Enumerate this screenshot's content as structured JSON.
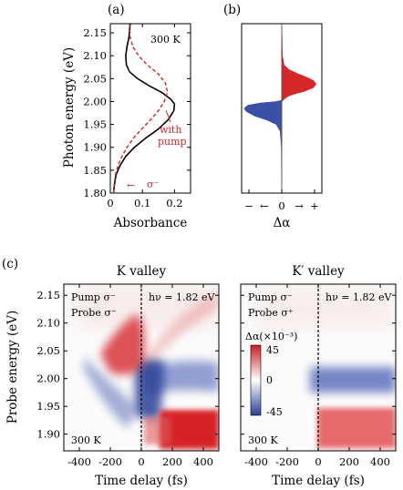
{
  "colors": {
    "red": "#d62728",
    "blue": "#3a4fa6",
    "black": "#000000",
    "cb_red": "#c81e24",
    "cb_blue": "#2b3f96"
  },
  "panels": {
    "a": {
      "label": "(a)",
      "temp": "300 K",
      "xlabel": "Absorbance",
      "ylabel": "Photon energy (eV)",
      "yticks": [
        "1.80",
        "1.85",
        "1.90",
        "1.95",
        "2.00",
        "2.05",
        "2.10",
        "2.15"
      ],
      "xticks": [
        "0",
        "0.1",
        "0.2"
      ],
      "annot_pump_1": "with",
      "annot_pump_2": "pump",
      "sigma_label": "σ⁻",
      "sigma_arrow": "←"
    },
    "b": {
      "label": "(b)",
      "xlabel": "Δα",
      "xticks": [
        "−",
        "←",
        "0",
        "→",
        "+"
      ]
    },
    "c": {
      "label": "(c)",
      "left_title": "K valley",
      "right_title": "K′ valley",
      "ylabel": "Probe energy (eV)",
      "xlabel": "Time delay (fs)",
      "yticks": [
        "1.90",
        "1.95",
        "2.00",
        "2.05",
        "2.10",
        "2.15"
      ],
      "xticks": [
        "-400",
        "-200",
        "0",
        "200",
        "400"
      ],
      "left_pump": "Pump σ⁻",
      "left_probe": "Probe σ⁻",
      "right_pump": "Pump σ⁻",
      "right_probe": "Probe σ⁺",
      "hv_left": "hν = 1.82 eV",
      "hv_right": "hν = 1.82 eV",
      "temp_left": "300 K",
      "temp_right": "300 K",
      "cbar_title": "Δα(×10⁻³)",
      "cbar_max": "45",
      "cbar_mid": "0",
      "cbar_min": "-45"
    }
  },
  "chart_data": [
    {
      "type": "line",
      "panel": "a",
      "xlabel": "Absorbance",
      "ylabel": "Photon energy (eV)",
      "xlim": [
        0,
        0.25
      ],
      "ylim": [
        1.8,
        2.17
      ],
      "series": [
        {
          "name": "",
          "style": "solid",
          "color": "#000000",
          "points": [
            [
              0.01,
              1.8
            ],
            [
              0.013,
              1.82
            ],
            [
              0.018,
              1.84
            ],
            [
              0.03,
              1.86
            ],
            [
              0.048,
              1.88
            ],
            [
              0.075,
              1.9
            ],
            [
              0.11,
              1.92
            ],
            [
              0.15,
              1.94
            ],
            [
              0.18,
              1.96
            ],
            [
              0.198,
              1.98
            ],
            [
              0.2,
              1.995
            ],
            [
              0.188,
              2.005
            ],
            [
              0.16,
              2.02
            ],
            [
              0.12,
              2.035
            ],
            [
              0.085,
              2.05
            ],
            [
              0.06,
              2.065
            ],
            [
              0.05,
              2.08
            ],
            [
              0.048,
              2.1
            ],
            [
              0.052,
              2.12
            ],
            [
              0.058,
              2.14
            ],
            [
              0.062,
              2.17
            ]
          ]
        },
        {
          "name": "with pump",
          "style": "dashed",
          "color": "#d62728",
          "points": [
            [
              0.01,
              1.8
            ],
            [
              0.012,
              1.82
            ],
            [
              0.016,
              1.84
            ],
            [
              0.024,
              1.86
            ],
            [
              0.036,
              1.88
            ],
            [
              0.052,
              1.9
            ],
            [
              0.072,
              1.92
            ],
            [
              0.098,
              1.94
            ],
            [
              0.125,
              1.96
            ],
            [
              0.15,
              1.98
            ],
            [
              0.168,
              2.0
            ],
            [
              0.178,
              2.02
            ],
            [
              0.172,
              2.04
            ],
            [
              0.15,
              2.06
            ],
            [
              0.115,
              2.08
            ],
            [
              0.088,
              2.1
            ],
            [
              0.07,
              2.12
            ],
            [
              0.062,
              2.14
            ],
            [
              0.06,
              2.17
            ]
          ]
        }
      ]
    },
    {
      "type": "area",
      "panel": "b",
      "xlabel": "Δα",
      "ylim": [
        1.8,
        2.17
      ],
      "series": [
        {
          "name": "",
          "color": "#d62728",
          "points": [
            [
              0,
              2.0
            ],
            [
              0.06,
              2.005
            ],
            [
              0.18,
              2.012
            ],
            [
              0.4,
              2.018
            ],
            [
              0.62,
              2.023
            ],
            [
              0.82,
              2.03
            ],
            [
              0.9,
              2.038
            ],
            [
              0.82,
              2.046
            ],
            [
              0.62,
              2.054
            ],
            [
              0.38,
              2.062
            ],
            [
              0.18,
              2.07
            ],
            [
              0.06,
              2.08
            ],
            [
              0.02,
              2.1
            ],
            [
              0,
              2.17
            ]
          ]
        },
        {
          "name": "",
          "color": "#3a4fa6",
          "points": [
            [
              0,
              1.8
            ],
            [
              -0.01,
              1.9
            ],
            [
              -0.04,
              1.935
            ],
            [
              -0.14,
              1.95
            ],
            [
              -0.4,
              1.96
            ],
            [
              -0.7,
              1.968
            ],
            [
              -0.92,
              1.978
            ],
            [
              -0.98,
              1.985
            ],
            [
              -0.88,
              1.992
            ],
            [
              -0.55,
              1.997
            ],
            [
              -0.15,
              2.0
            ],
            [
              0,
              2.003
            ]
          ]
        }
      ]
    },
    {
      "type": "heatmap",
      "panel": "c-left",
      "title": "K valley",
      "xlabel": "Time delay (fs)",
      "ylabel": "Probe energy (eV)",
      "xlim": [
        -500,
        500
      ],
      "ylim": [
        1.87,
        2.17
      ],
      "zlim": [
        -45,
        45
      ],
      "features": [
        {
          "sign": "+",
          "t_range": [
            -120,
            0
          ],
          "e_range": [
            1.98,
            2.05
          ],
          "peak": 25
        },
        {
          "sign": "-",
          "t_range": [
            0,
            500
          ],
          "e_range": [
            1.94,
            2.0
          ],
          "peak": -30
        },
        {
          "sign": "+",
          "t_range": [
            80,
            500
          ],
          "e_range": [
            1.875,
            1.935
          ],
          "peak": 45
        }
      ]
    },
    {
      "type": "heatmap",
      "panel": "c-right",
      "title": "K′ valley",
      "xlabel": "Time delay (fs)",
      "xlim": [
        -500,
        500
      ],
      "ylim": [
        1.87,
        2.17
      ],
      "zlim": [
        -45,
        45
      ],
      "features": [
        {
          "sign": "-",
          "t_range": [
            0,
            500
          ],
          "e_range": [
            1.94,
            2.0
          ],
          "peak": -20
        },
        {
          "sign": "+",
          "t_range": [
            0,
            500
          ],
          "e_range": [
            1.875,
            1.935
          ],
          "peak": 30
        }
      ]
    }
  ]
}
